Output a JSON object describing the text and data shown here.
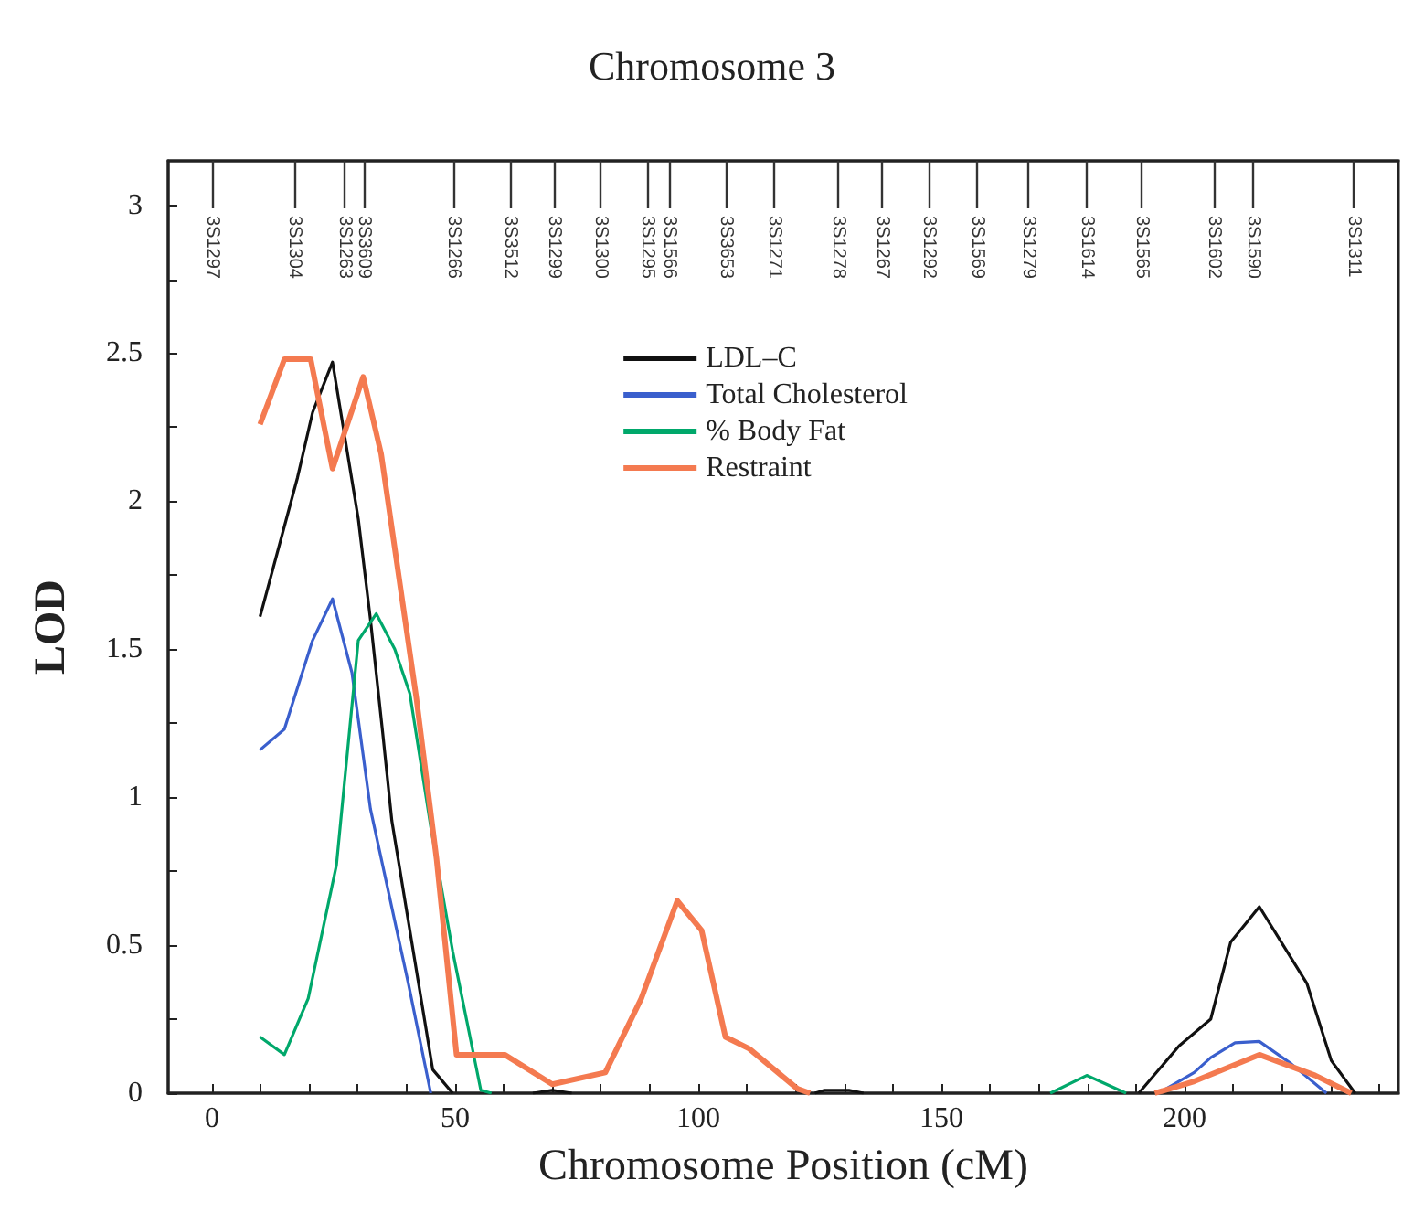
{
  "chart_data": {
    "type": "line",
    "title": "Chromosome 3",
    "xlabel": "Chromosome Position (cM)",
    "ylabel": "LOD",
    "xlim": [
      -9,
      244
    ],
    "xticks": [
      0,
      {
        "value": 10,
        "label": null
      },
      {
        "value": 20,
        "label": null
      },
      {
        "value": 30,
        "label": null
      },
      {
        "value": 40,
        "label": null
      },
      50,
      {
        "value": 60,
        "label": null
      },
      {
        "value": 70,
        "label": null
      },
      {
        "value": 80,
        "label": null
      },
      {
        "value": 90,
        "label": null
      },
      100,
      {
        "value": 110,
        "label": null
      },
      {
        "value": 120,
        "label": null
      },
      {
        "value": 130,
        "label": null
      },
      {
        "value": 140,
        "label": null
      },
      150,
      {
        "value": 160,
        "label": null
      },
      {
        "value": 170,
        "label": null
      },
      {
        "value": 180,
        "label": null
      },
      {
        "value": 190,
        "label": null
      },
      200,
      {
        "value": 210,
        "label": null
      },
      {
        "value": 220,
        "label": null
      },
      {
        "value": 230,
        "label": null
      },
      {
        "value": 240,
        "label": null
      }
    ],
    "ylim": [
      0,
      3.15
    ],
    "yticks": [
      0,
      {
        "value": 0.25,
        "label": null
      },
      0.5,
      {
        "value": 0.75,
        "label": null
      },
      1,
      {
        "value": 1.25,
        "label": null
      },
      1.5,
      {
        "value": 1.75,
        "label": null
      },
      2,
      {
        "value": 2.25,
        "label": null
      },
      2.5,
      {
        "value": 2.75,
        "label": null
      },
      3
    ],
    "ref_lines": [
      {
        "axis": "x",
        "value": 0,
        "label": "3S1297"
      },
      {
        "axis": "x",
        "value": 17,
        "label": "3S1304"
      },
      {
        "axis": "x",
        "value": 27.2,
        "label": "3S1263"
      },
      {
        "axis": "x",
        "value": 31.3,
        "label": "3S3609"
      },
      {
        "axis": "x",
        "value": 49.7,
        "label": "3S1266"
      },
      {
        "axis": "x",
        "value": 61.3,
        "label": "3S3512"
      },
      {
        "axis": "x",
        "value": 70.4,
        "label": "3S1299"
      },
      {
        "axis": "x",
        "value": 80,
        "label": "3S1300"
      },
      {
        "axis": "x",
        "value": 89.4,
        "label": "3S1295"
      },
      {
        "axis": "x",
        "value": 94,
        "label": "3S1566"
      },
      {
        "axis": "x",
        "value": 105.6,
        "label": "3S3653"
      },
      {
        "axis": "x",
        "value": 115.6,
        "label": "3S1271"
      },
      {
        "axis": "x",
        "value": 128.7,
        "label": "3S1278"
      },
      {
        "axis": "x",
        "value": 137.8,
        "label": "3S1267"
      },
      {
        "axis": "x",
        "value": 147.4,
        "label": "3S1292"
      },
      {
        "axis": "x",
        "value": 157.4,
        "label": "3S1569"
      },
      {
        "axis": "x",
        "value": 167.8,
        "label": "3S1279"
      },
      {
        "axis": "x",
        "value": 179.9,
        "label": "3S1614"
      },
      {
        "axis": "x",
        "value": 191.1,
        "label": "3S1565"
      },
      {
        "axis": "x",
        "value": 206,
        "label": "3S1602"
      },
      {
        "axis": "x",
        "value": 214.2,
        "label": "3S1590"
      },
      {
        "axis": "x",
        "value": 234.8,
        "label": "3S1311"
      }
    ],
    "grid": false,
    "legend": "top",
    "marker": "none",
    "series": [
      {
        "name": "LDL–C",
        "color": "#111111",
        "x": [
          9.9,
          17.6,
          20.7,
          24.8,
          30.1,
          32.6,
          35.1,
          37,
          45.4,
          49.5,
          52,
          66,
          70,
          74,
          78,
          124,
          126,
          131,
          134,
          138,
          190.6,
          198.9,
          205.4,
          209.5,
          215.4,
          225.2,
          230.2,
          235.1
        ],
        "values": [
          1.61,
          2.08,
          2.3,
          2.47,
          1.94,
          1.6,
          1.22,
          0.92,
          0.08,
          0,
          null,
          0,
          0.01,
          0,
          null,
          0,
          0.01,
          0.01,
          0,
          null,
          0,
          0.16,
          0.25,
          0.51,
          0.63,
          0.37,
          0.11,
          0
        ]
      },
      {
        "name": "Total Cholesterol",
        "color": "#3a5fcd",
        "x": [
          9.9,
          14.9,
          20.7,
          24.8,
          28.8,
          32.6,
          40.4,
          45,
          100,
          194.7,
          202,
          205.4,
          210.4,
          215.4,
          221.9,
          229.2
        ],
        "values": [
          1.16,
          1.23,
          1.53,
          1.67,
          1.42,
          0.96,
          0.37,
          0,
          null,
          0,
          0.07,
          0.12,
          0.17,
          0.175,
          0.1,
          0
        ]
      },
      {
        "name": "% Body Fat",
        "color": "#00a86b",
        "x": [
          9.9,
          14.9,
          19.8,
          25.6,
          30.1,
          33.8,
          37.6,
          40.7,
          45,
          49.5,
          55.3,
          57.5,
          100,
          172.4,
          179.9,
          188
        ],
        "values": [
          0.19,
          0.13,
          0.32,
          0.77,
          1.53,
          1.62,
          1.5,
          1.35,
          0.9,
          0.48,
          0.01,
          0,
          null,
          0,
          0.06,
          0
        ]
      },
      {
        "name": "Restraint",
        "color": "#f47a50",
        "x": [
          9.9,
          14.9,
          20.3,
          24.8,
          31.1,
          34.8,
          42,
          46.2,
          50.3,
          60.2,
          70,
          80.9,
          88.3,
          95.7,
          100.7,
          105.6,
          110.5,
          120.4,
          123,
          150,
          193.9,
          202,
          215.4,
          226.9,
          234.3
        ],
        "values": [
          2.26,
          2.48,
          2.48,
          2.11,
          2.42,
          2.16,
          1.34,
          0.79,
          0.13,
          0.13,
          0.03,
          0.07,
          0.32,
          0.65,
          0.55,
          0.19,
          0.15,
          0.015,
          0,
          null,
          0,
          0.04,
          0.13,
          0.06,
          0
        ]
      }
    ]
  }
}
